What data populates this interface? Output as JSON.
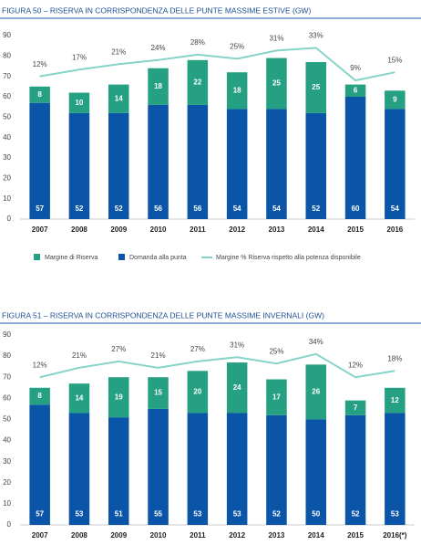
{
  "chart_data": [
    {
      "type": "bar",
      "title": "FIGURA 50 – RISERVA IN CORRISPONDENZA DELLE PUNTE MASSIME ESTIVE (GW)",
      "categories": [
        "2007",
        "2008",
        "2009",
        "2010",
        "2011",
        "2012",
        "2013",
        "2014",
        "2015",
        "2016"
      ],
      "stacked": true,
      "series": [
        {
          "name": "Domanda alla punta",
          "color": "#0a55a8",
          "values": [
            57,
            52,
            52,
            56,
            56,
            54,
            54,
            52,
            60,
            54
          ]
        },
        {
          "name": "Margine di Riserva",
          "color": "#26a082",
          "values": [
            8,
            10,
            14,
            18,
            22,
            18,
            25,
            25,
            6,
            9
          ]
        },
        {
          "name": "Margine % Riserva rispetto alla potenza disponibile",
          "type": "line",
          "axis": "y2",
          "color": "#86d3c9",
          "values": [
            12,
            17,
            21,
            24,
            28,
            25,
            31,
            33,
            9,
            15
          ],
          "value_labels": [
            "12%",
            "17%",
            "21%",
            "24%",
            "28%",
            "25%",
            "31%",
            "33%",
            "9%",
            "15%"
          ]
        }
      ],
      "ylim": [
        0,
        90
      ],
      "yticks": [
        0,
        10,
        20,
        30,
        40,
        50,
        60,
        70,
        80,
        90
      ],
      "y2lim": [
        -93,
        42
      ],
      "legend": "bottom"
    },
    {
      "type": "bar",
      "title": "FIGURA 51 – RISERVA IN CORRISPONDENZA DELLE PUNTE MASSIME INVERNALI (GW)",
      "categories": [
        "2007",
        "2008",
        "2009",
        "2010",
        "2011",
        "2012",
        "2013",
        "2014",
        "2015",
        "2016(*)"
      ],
      "stacked": true,
      "series": [
        {
          "color": "#0a55a8",
          "values": [
            57,
            53,
            51,
            55,
            53,
            53,
            52,
            50,
            52,
            53
          ]
        },
        {
          "color": "#26a082",
          "values": [
            8,
            14,
            19,
            15,
            20,
            24,
            17,
            26,
            7,
            12
          ]
        },
        {
          "type": "line",
          "axis": "y2",
          "color": "#86d3c9",
          "values": [
            12,
            21,
            27,
            21,
            27,
            31,
            25,
            34,
            12,
            18
          ],
          "value_labels": [
            "12%",
            "21%",
            "27%",
            "21%",
            "27%",
            "31%",
            "25%",
            "34%",
            "12%",
            "18%"
          ]
        }
      ],
      "ylim": [
        0,
        90
      ],
      "yticks": [
        0,
        10,
        20,
        30,
        40,
        50,
        60,
        70,
        80,
        90
      ],
      "y2lim": [
        -128,
        52
      ]
    }
  ]
}
